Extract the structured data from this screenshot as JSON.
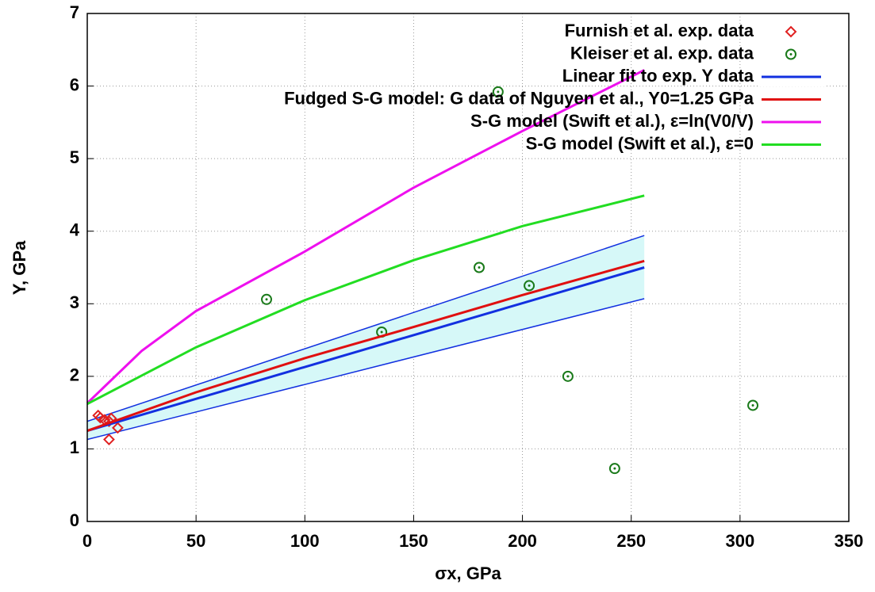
{
  "chart_data": {
    "type": "line",
    "xlabel": "σx, GPa",
    "ylabel": "Y, GPa",
    "xlim": [
      0,
      350
    ],
    "xticks": [
      0,
      50,
      100,
      150,
      200,
      250,
      300,
      350
    ],
    "ylim": [
      0,
      7
    ],
    "yticks": [
      0,
      1,
      2,
      3,
      4,
      5,
      6,
      7
    ],
    "grid": true,
    "legend": "upper right",
    "band": {
      "x": [
        0,
        256
      ],
      "upper": [
        1.38,
        3.94
      ],
      "lower": [
        1.13,
        3.07
      ],
      "color": "#d6f8f8",
      "edge_color": "#1230e0"
    },
    "series": [
      {
        "name": "Furnish et al. exp. data",
        "type": "scatter",
        "marker": "diamond",
        "color": "#e02020",
        "x": [
          5,
          6,
          8,
          10,
          11,
          14,
          10
        ],
        "values": [
          1.46,
          1.43,
          1.4,
          1.38,
          1.42,
          1.29,
          1.13
        ]
      },
      {
        "name": "Kleiser et al. exp. data",
        "type": "scatter",
        "marker": "circle",
        "color": "#1a7a1a",
        "x": [
          82.4,
          135.3,
          180.1,
          188.8,
          203.1,
          220.9,
          242.4,
          305.9
        ],
        "values": [
          3.06,
          2.61,
          3.5,
          5.92,
          3.25,
          2.0,
          0.73,
          1.6
        ]
      },
      {
        "name": "Linear fit to exp. Y data",
        "type": "line",
        "color": "#1230e0",
        "x": [
          0,
          256
        ],
        "values": [
          1.25,
          3.5
        ]
      },
      {
        "name": "Fudged S-G model: G data of Nguyen et al., Y0=1.25 GPa",
        "type": "line",
        "color": "#e01010",
        "x": [
          0,
          50,
          100,
          150,
          200,
          256
        ],
        "values": [
          1.25,
          1.78,
          2.25,
          2.68,
          3.12,
          3.59
        ]
      },
      {
        "name": "S-G model (Swift et al.), ε=ln(V0/V)",
        "type": "line",
        "color": "#ee10ee",
        "x": [
          0,
          25,
          50,
          100,
          150,
          200,
          256
        ],
        "values": [
          1.63,
          2.35,
          2.9,
          3.72,
          4.6,
          5.38,
          6.22
        ]
      },
      {
        "name": "S-G model (Swift et al.), ε=0",
        "type": "line",
        "color": "#22dd22",
        "x": [
          0,
          50,
          100,
          150,
          200,
          256
        ],
        "values": [
          1.62,
          2.4,
          3.05,
          3.6,
          4.07,
          4.49
        ]
      }
    ]
  }
}
